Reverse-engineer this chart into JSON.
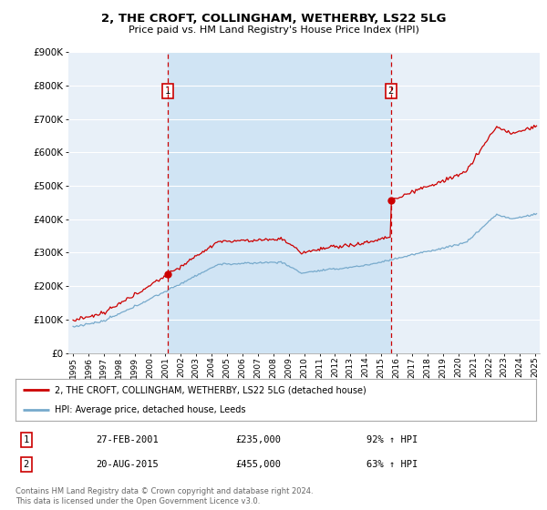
{
  "title": "2, THE CROFT, COLLINGHAM, WETHERBY, LS22 5LG",
  "subtitle": "Price paid vs. HM Land Registry's House Price Index (HPI)",
  "legend_line1": "2, THE CROFT, COLLINGHAM, WETHERBY, LS22 5LG (detached house)",
  "legend_line2": "HPI: Average price, detached house, Leeds",
  "footer": "Contains HM Land Registry data © Crown copyright and database right 2024.\nThis data is licensed under the Open Government Licence v3.0.",
  "transaction1_label": "1",
  "transaction1_date": "27-FEB-2001",
  "transaction1_price": "£235,000",
  "transaction1_hpi": "92% ↑ HPI",
  "transaction2_label": "2",
  "transaction2_date": "20-AUG-2015",
  "transaction2_price": "£455,000",
  "transaction2_hpi": "63% ↑ HPI",
  "vline1_x": 2001.15,
  "vline2_x": 2015.63,
  "ylim": [
    0,
    900000
  ],
  "xlim_left": 1994.7,
  "xlim_right": 2025.3,
  "property_color": "#cc0000",
  "hpi_color": "#77aacc",
  "vline_color": "#cc0000",
  "background_color": "#ffffff",
  "plot_bg_color": "#e8f0f8",
  "grid_color": "#ffffff",
  "shaded_region_color": "#d0e4f4"
}
